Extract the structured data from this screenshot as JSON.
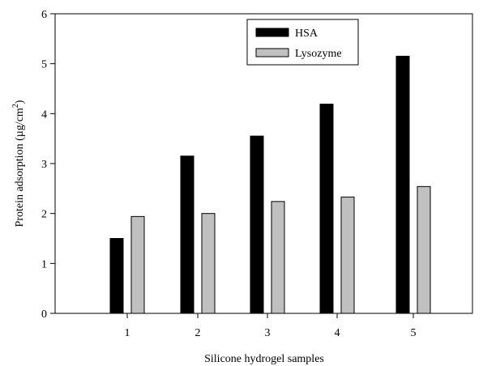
{
  "chart_data": {
    "type": "bar",
    "title": "",
    "xlabel": "Silicone hydrogel samples",
    "ylabel_main": "Protein adsorption (µg/cm",
    "ylabel_sup": "2",
    "ylabel_close": ")",
    "categories": [
      "1",
      "2",
      "3",
      "4",
      "5"
    ],
    "series": [
      {
        "name": "HSA",
        "color": "#000000",
        "values": [
          1.5,
          3.15,
          3.55,
          4.19,
          5.15
        ]
      },
      {
        "name": "Lysozyme",
        "color": "#c0c0c0",
        "values": [
          1.94,
          2.0,
          2.24,
          2.33,
          2.54
        ]
      }
    ],
    "ylim": [
      0,
      6
    ],
    "yticks": [
      "0",
      "1",
      "2",
      "3",
      "4",
      "5",
      "6"
    ],
    "grid": false,
    "legend_position": "top-center"
  }
}
